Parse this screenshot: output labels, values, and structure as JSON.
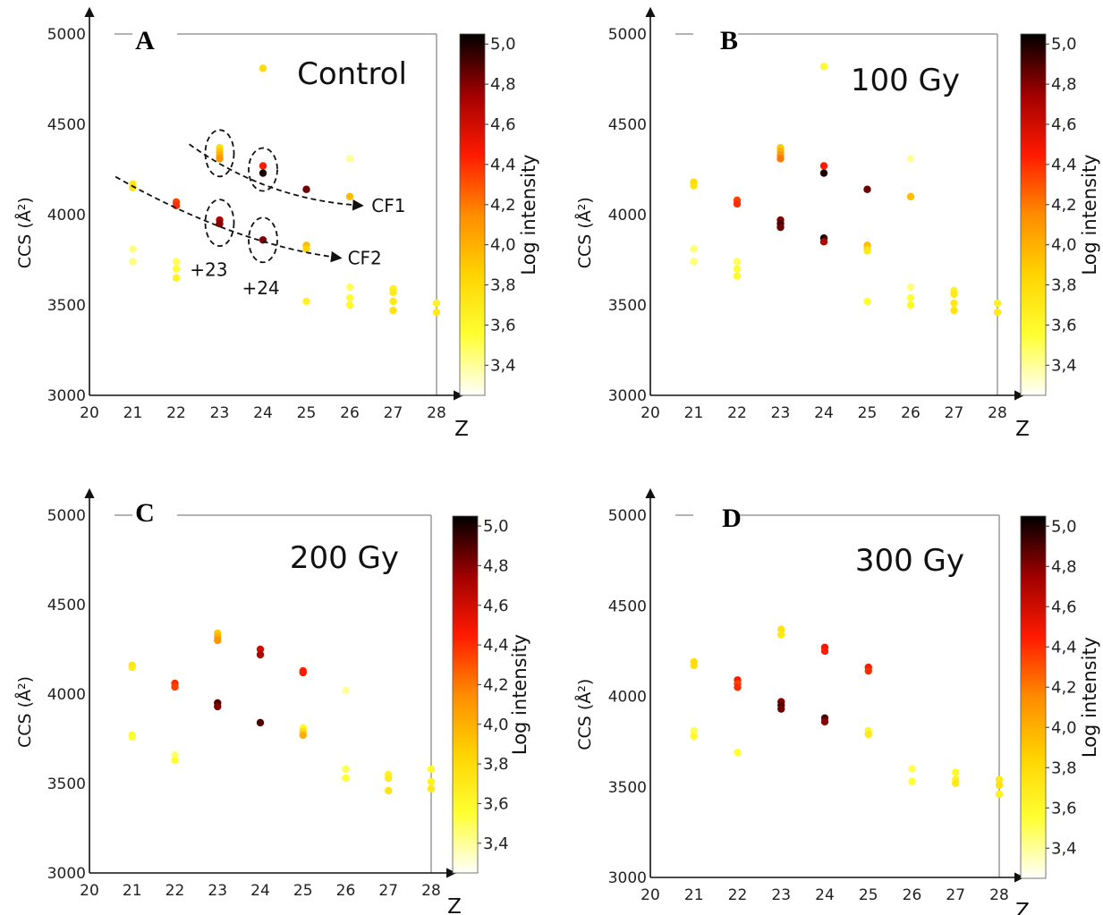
{
  "figure": {
    "colorbar": {
      "label": "Log intensity",
      "ticks": [
        "5,0",
        "4,8",
        "4,6",
        "4,4",
        "4,2",
        "4,0",
        "3,8",
        "3,6",
        "3,4"
      ],
      "stops": [
        "#ffffff",
        "#ffff33",
        "#ffd400",
        "#ff8c00",
        "#ff1a00",
        "#a00000",
        "#000000"
      ],
      "range": [
        3.25,
        5.05
      ]
    },
    "axes": {
      "xlabel": "Z",
      "ylabel": "CCS (Å²)",
      "xticks": [
        "20",
        "21",
        "22",
        "23",
        "24",
        "25",
        "26",
        "27",
        "28"
      ],
      "yticks": [
        "3000",
        "3500",
        "4000",
        "4500",
        "5000"
      ],
      "xlim": [
        20,
        28
      ],
      "ylim": [
        3000,
        5000
      ]
    }
  },
  "chart_data": [
    {
      "type": "scatter",
      "panel": "A",
      "title": "Control",
      "annotations": {
        "cf1": "CF1",
        "cf2": "CF2",
        "z23": "+23",
        "z24": "+24"
      },
      "points": [
        {
          "x": 24,
          "y": 4810,
          "v": 3.8
        },
        {
          "x": 21,
          "y": 4170,
          "v": 3.7
        },
        {
          "x": 21,
          "y": 4150,
          "v": 3.75
        },
        {
          "x": 21,
          "y": 3810,
          "v": 3.45
        },
        {
          "x": 21,
          "y": 3740,
          "v": 3.45
        },
        {
          "x": 22,
          "y": 4070,
          "v": 4.35
        },
        {
          "x": 22,
          "y": 4050,
          "v": 4.4
        },
        {
          "x": 22,
          "y": 3740,
          "v": 3.5
        },
        {
          "x": 22,
          "y": 3700,
          "v": 3.55
        },
        {
          "x": 22,
          "y": 3650,
          "v": 3.65
        },
        {
          "x": 23,
          "y": 4370,
          "v": 3.8
        },
        {
          "x": 23,
          "y": 4350,
          "v": 3.9
        },
        {
          "x": 23,
          "y": 4330,
          "v": 4.0
        },
        {
          "x": 23,
          "y": 4310,
          "v": 4.1
        },
        {
          "x": 23,
          "y": 3970,
          "v": 4.7
        },
        {
          "x": 23,
          "y": 3950,
          "v": 4.8
        },
        {
          "x": 24,
          "y": 4270,
          "v": 4.45
        },
        {
          "x": 24,
          "y": 4230,
          "v": 5.0
        },
        {
          "x": 24,
          "y": 3860,
          "v": 4.8
        },
        {
          "x": 25,
          "y": 4140,
          "v": 4.85
        },
        {
          "x": 25,
          "y": 3830,
          "v": 3.95
        },
        {
          "x": 25,
          "y": 3810,
          "v": 3.85
        },
        {
          "x": 25,
          "y": 3520,
          "v": 3.65
        },
        {
          "x": 26,
          "y": 4310,
          "v": 3.4
        },
        {
          "x": 26,
          "y": 4100,
          "v": 3.95
        },
        {
          "x": 26,
          "y": 3600,
          "v": 3.5
        },
        {
          "x": 26,
          "y": 3540,
          "v": 3.55
        },
        {
          "x": 26,
          "y": 3500,
          "v": 3.6
        },
        {
          "x": 27,
          "y": 3590,
          "v": 3.65
        },
        {
          "x": 27,
          "y": 3570,
          "v": 3.7
        },
        {
          "x": 27,
          "y": 3520,
          "v": 3.7
        },
        {
          "x": 27,
          "y": 3470,
          "v": 3.75
        },
        {
          "x": 28,
          "y": 3510,
          "v": 3.65
        },
        {
          "x": 28,
          "y": 3460,
          "v": 3.7
        }
      ]
    },
    {
      "type": "scatter",
      "panel": "B",
      "title": "100 Gy",
      "points": [
        {
          "x": 24,
          "y": 4820,
          "v": 3.6
        },
        {
          "x": 21,
          "y": 4180,
          "v": 3.8
        },
        {
          "x": 21,
          "y": 4160,
          "v": 3.75
        },
        {
          "x": 21,
          "y": 3810,
          "v": 3.45
        },
        {
          "x": 21,
          "y": 3740,
          "v": 3.45
        },
        {
          "x": 22,
          "y": 4080,
          "v": 4.35
        },
        {
          "x": 22,
          "y": 4060,
          "v": 4.4
        },
        {
          "x": 22,
          "y": 3740,
          "v": 3.5
        },
        {
          "x": 22,
          "y": 3700,
          "v": 3.55
        },
        {
          "x": 22,
          "y": 3660,
          "v": 3.6
        },
        {
          "x": 23,
          "y": 4370,
          "v": 3.9
        },
        {
          "x": 23,
          "y": 4350,
          "v": 4.0
        },
        {
          "x": 23,
          "y": 4330,
          "v": 4.1
        },
        {
          "x": 23,
          "y": 4310,
          "v": 4.2
        },
        {
          "x": 23,
          "y": 3970,
          "v": 4.8
        },
        {
          "x": 23,
          "y": 3950,
          "v": 4.9
        },
        {
          "x": 23,
          "y": 3930,
          "v": 4.85
        },
        {
          "x": 24,
          "y": 4270,
          "v": 4.45
        },
        {
          "x": 24,
          "y": 4230,
          "v": 5.0
        },
        {
          "x": 24,
          "y": 3870,
          "v": 5.0
        },
        {
          "x": 24,
          "y": 3850,
          "v": 4.7
        },
        {
          "x": 25,
          "y": 4140,
          "v": 4.85
        },
        {
          "x": 25,
          "y": 3830,
          "v": 3.95
        },
        {
          "x": 25,
          "y": 3810,
          "v": 3.85
        },
        {
          "x": 25,
          "y": 3800,
          "v": 3.7
        },
        {
          "x": 25,
          "y": 3520,
          "v": 3.55
        },
        {
          "x": 26,
          "y": 4310,
          "v": 3.4
        },
        {
          "x": 26,
          "y": 4100,
          "v": 3.95
        },
        {
          "x": 26,
          "y": 3600,
          "v": 3.45
        },
        {
          "x": 26,
          "y": 3540,
          "v": 3.55
        },
        {
          "x": 26,
          "y": 3500,
          "v": 3.6
        },
        {
          "x": 27,
          "y": 3580,
          "v": 3.65
        },
        {
          "x": 27,
          "y": 3560,
          "v": 3.7
        },
        {
          "x": 27,
          "y": 3510,
          "v": 3.7
        },
        {
          "x": 27,
          "y": 3470,
          "v": 3.75
        },
        {
          "x": 28,
          "y": 3510,
          "v": 3.65
        },
        {
          "x": 28,
          "y": 3460,
          "v": 3.7
        }
      ]
    },
    {
      "type": "scatter",
      "panel": "C",
      "title": "200 Gy",
      "points": [
        {
          "x": 21,
          "y": 4160,
          "v": 3.75
        },
        {
          "x": 21,
          "y": 4150,
          "v": 3.7
        },
        {
          "x": 21,
          "y": 3770,
          "v": 3.6
        },
        {
          "x": 21,
          "y": 3760,
          "v": 3.55
        },
        {
          "x": 22,
          "y": 4060,
          "v": 4.4
        },
        {
          "x": 22,
          "y": 4040,
          "v": 4.35
        },
        {
          "x": 22,
          "y": 3660,
          "v": 3.45
        },
        {
          "x": 22,
          "y": 3630,
          "v": 3.55
        },
        {
          "x": 23,
          "y": 4340,
          "v": 3.9
        },
        {
          "x": 23,
          "y": 4320,
          "v": 4.0
        },
        {
          "x": 23,
          "y": 4300,
          "v": 4.1
        },
        {
          "x": 23,
          "y": 3950,
          "v": 4.9
        },
        {
          "x": 23,
          "y": 3930,
          "v": 4.8
        },
        {
          "x": 24,
          "y": 4250,
          "v": 4.6
        },
        {
          "x": 24,
          "y": 4220,
          "v": 4.7
        },
        {
          "x": 24,
          "y": 3840,
          "v": 4.9
        },
        {
          "x": 25,
          "y": 4130,
          "v": 4.4
        },
        {
          "x": 25,
          "y": 4120,
          "v": 4.45
        },
        {
          "x": 25,
          "y": 3810,
          "v": 3.6
        },
        {
          "x": 25,
          "y": 3790,
          "v": 3.8
        },
        {
          "x": 25,
          "y": 3770,
          "v": 4.0
        },
        {
          "x": 26,
          "y": 4020,
          "v": 3.4
        },
        {
          "x": 26,
          "y": 3580,
          "v": 3.5
        },
        {
          "x": 26,
          "y": 3530,
          "v": 3.55
        },
        {
          "x": 27,
          "y": 3550,
          "v": 3.65
        },
        {
          "x": 27,
          "y": 3530,
          "v": 3.7
        },
        {
          "x": 27,
          "y": 3460,
          "v": 3.75
        },
        {
          "x": 28,
          "y": 3580,
          "v": 3.6
        },
        {
          "x": 28,
          "y": 3510,
          "v": 3.65
        },
        {
          "x": 28,
          "y": 3470,
          "v": 3.7
        }
      ]
    },
    {
      "type": "scatter",
      "panel": "D",
      "title": "300 Gy",
      "points": [
        {
          "x": 21,
          "y": 4190,
          "v": 3.8
        },
        {
          "x": 21,
          "y": 4170,
          "v": 3.75
        },
        {
          "x": 21,
          "y": 3810,
          "v": 3.5
        },
        {
          "x": 21,
          "y": 3780,
          "v": 3.6
        },
        {
          "x": 22,
          "y": 4090,
          "v": 4.45
        },
        {
          "x": 22,
          "y": 4070,
          "v": 4.35
        },
        {
          "x": 22,
          "y": 4050,
          "v": 4.4
        },
        {
          "x": 22,
          "y": 3690,
          "v": 3.55
        },
        {
          "x": 23,
          "y": 4370,
          "v": 3.75
        },
        {
          "x": 23,
          "y": 4340,
          "v": 3.7
        },
        {
          "x": 23,
          "y": 3970,
          "v": 4.8
        },
        {
          "x": 23,
          "y": 3950,
          "v": 4.9
        },
        {
          "x": 23,
          "y": 3930,
          "v": 4.85
        },
        {
          "x": 24,
          "y": 4270,
          "v": 4.5
        },
        {
          "x": 24,
          "y": 4250,
          "v": 4.45
        },
        {
          "x": 24,
          "y": 3880,
          "v": 4.9
        },
        {
          "x": 24,
          "y": 3860,
          "v": 4.8
        },
        {
          "x": 25,
          "y": 4160,
          "v": 4.45
        },
        {
          "x": 25,
          "y": 4140,
          "v": 4.4
        },
        {
          "x": 25,
          "y": 3810,
          "v": 3.6
        },
        {
          "x": 25,
          "y": 3790,
          "v": 3.7
        },
        {
          "x": 26,
          "y": 3600,
          "v": 3.5
        },
        {
          "x": 26,
          "y": 3530,
          "v": 3.55
        },
        {
          "x": 27,
          "y": 3580,
          "v": 3.6
        },
        {
          "x": 27,
          "y": 3540,
          "v": 3.65
        },
        {
          "x": 27,
          "y": 3520,
          "v": 3.7
        },
        {
          "x": 28,
          "y": 3540,
          "v": 3.7
        },
        {
          "x": 28,
          "y": 3510,
          "v": 3.75
        },
        {
          "x": 28,
          "y": 3460,
          "v": 3.65
        }
      ]
    }
  ]
}
